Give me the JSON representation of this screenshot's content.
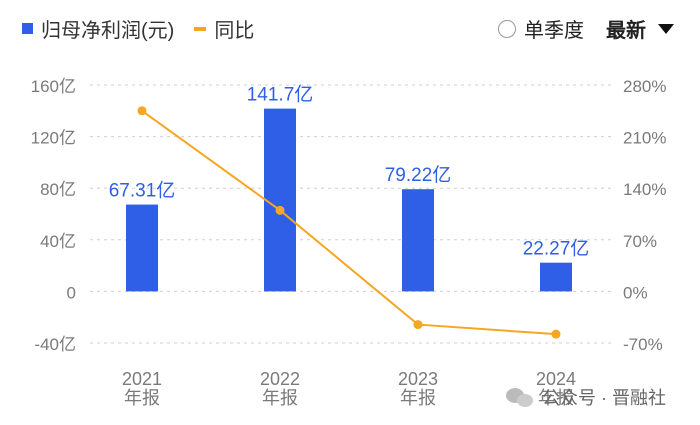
{
  "legend": {
    "bar_label": "归母净利润(元)",
    "line_label": "同比"
  },
  "controls": {
    "radio_label": "单季度",
    "select_label": "最新"
  },
  "watermark": {
    "text": "公众号 · 晋融社"
  },
  "colors": {
    "bar": "#2f5fe6",
    "line": "#f5a623",
    "axis_text": "#7a7a7a",
    "data_label": "#2f5fe6"
  },
  "chart_data": {
    "type": "bar",
    "categories": [
      "2021",
      "2022",
      "2023",
      "2024"
    ],
    "category_sublabel": "年报",
    "series": [
      {
        "name": "归母净利润(元)",
        "type": "bar",
        "axis": "left",
        "values": [
          67.31,
          141.7,
          79.22,
          22.27
        ],
        "labels": [
          "67.31亿",
          "141.7亿",
          "79.22亿",
          "22.27亿"
        ]
      },
      {
        "name": "同比",
        "type": "line",
        "axis": "right",
        "values": [
          245,
          110,
          -45,
          -58
        ]
      }
    ],
    "left_axis": {
      "ticks": [
        160,
        120,
        80,
        40,
        0,
        -40
      ],
      "tick_labels": [
        "160亿",
        "120亿",
        "80亿",
        "40亿",
        "0",
        "-40亿"
      ],
      "ylim": [
        -40,
        160
      ]
    },
    "right_axis": {
      "ticks": [
        280,
        210,
        140,
        70,
        0,
        -70
      ],
      "tick_labels": [
        "280%",
        "210%",
        "140%",
        "70%",
        "0%",
        "-70%"
      ],
      "ylim": [
        -70,
        280
      ]
    },
    "grid": "dashed horizontal"
  }
}
